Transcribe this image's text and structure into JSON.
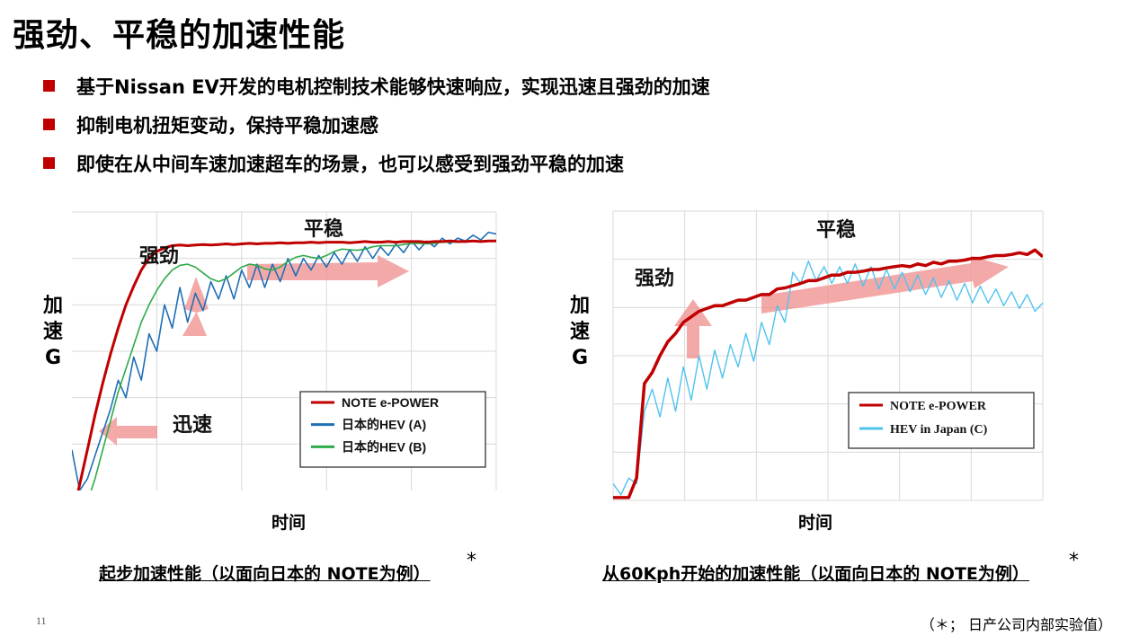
{
  "title": "强劲、平稳的加速性能",
  "bullets": [
    "基于Nissan EV开发的电机控制技术能够快速响应，实现迅速且强劲的加速",
    "抑制电机扭矩变动，保持平稳加速感",
    "即使在从中间车速加速超车的场景，也可以感受到强劲平稳的加速"
  ],
  "colors": {
    "accent": "#c00000",
    "note_line": "#c00000",
    "hev_a": "#1f6fb5",
    "hev_b": "#2eaa4a",
    "hev_c": "#4fc3ef",
    "arrow": "#f08c8c"
  },
  "chart_data": [
    {
      "type": "line",
      "caption": "起步加速性能（以面向日本的 NOTE为例）",
      "caption_star": "*",
      "ylabel": "加速G",
      "xlabel": "时间",
      "annotations": [
        "强劲",
        "平稳",
        "迅速"
      ],
      "grid": true,
      "legend": "lower-right",
      "x": [
        0,
        0.3,
        0.6,
        0.9,
        1.2,
        1.5,
        1.8,
        2.1,
        2.4,
        2.7,
        3.0,
        3.3,
        3.6,
        3.9,
        4.2,
        4.5,
        4.8,
        5.1,
        5.4,
        5.7,
        6.0,
        6.3,
        6.6,
        6.9,
        7.2,
        7.5,
        7.8,
        8.1,
        8.4,
        8.7,
        9.0,
        9.3,
        9.6,
        9.9,
        10.2,
        10.5,
        10.8,
        11.1,
        11.4,
        11.7,
        12.0,
        12.3,
        12.6,
        12.9,
        13.2,
        13.5,
        13.8,
        14.1,
        14.4,
        14.7,
        15.0,
        15.3,
        15.6,
        15.9,
        16.2,
        16.5
      ],
      "series": [
        {
          "name": "NOTE e-POWER",
          "values": [
            -1,
            -0.4,
            0.2,
            0.8,
            1.35,
            1.85,
            2.3,
            2.7,
            3.02,
            3.3,
            3.5,
            3.62,
            3.68,
            3.72,
            3.73,
            3.72,
            3.73,
            3.74,
            3.73,
            3.74,
            3.75,
            3.74,
            3.75,
            3.76,
            3.75,
            3.76,
            3.76,
            3.77,
            3.76,
            3.77,
            3.77,
            3.78,
            3.77,
            3.78,
            3.78,
            3.78,
            3.77,
            3.78,
            3.79,
            3.78,
            3.78,
            3.79,
            3.78,
            3.79,
            3.79,
            3.79,
            3.78,
            3.79,
            3.79,
            3.8,
            3.79,
            3.79,
            3.8,
            3.79,
            3.8,
            3.8
          ]
        },
        {
          "name": "日本的HEV (A)",
          "values": [
            0.2,
            -0.5,
            -0.3,
            0.1,
            0.5,
            0.9,
            1.4,
            1.1,
            1.8,
            1.4,
            2.2,
            1.9,
            2.7,
            2.3,
            3.0,
            2.4,
            2.9,
            2.6,
            3.1,
            2.8,
            3.2,
            2.8,
            3.3,
            3.0,
            3.4,
            3.0,
            3.4,
            3.1,
            3.5,
            3.2,
            3.5,
            3.3,
            3.55,
            3.35,
            3.6,
            3.4,
            3.65,
            3.45,
            3.7,
            3.5,
            3.7,
            3.55,
            3.75,
            3.6,
            3.8,
            3.65,
            3.8,
            3.7,
            3.85,
            3.75,
            3.85,
            3.8,
            3.9,
            3.82,
            3.95,
            3.92
          ]
        },
        {
          "name": "日本的HEV (B)",
          "values": [
            -1.2,
            -1.0,
            -0.7,
            -0.3,
            0.2,
            0.7,
            1.2,
            1.6,
            2.0,
            2.4,
            2.7,
            2.95,
            3.15,
            3.3,
            3.38,
            3.4,
            3.35,
            3.25,
            3.15,
            3.1,
            3.15,
            3.25,
            3.35,
            3.4,
            3.38,
            3.32,
            3.3,
            3.35,
            3.45,
            3.52,
            3.55,
            3.52,
            3.5,
            3.55,
            3.62,
            3.66,
            3.65,
            3.64,
            3.66,
            3.7,
            3.72,
            3.72,
            3.72,
            3.74,
            3.76,
            3.76,
            3.75,
            3.76,
            3.78,
            3.78,
            3.78,
            3.79,
            3.8,
            3.8,
            3.8,
            3.8
          ]
        }
      ]
    },
    {
      "type": "line",
      "caption": "从60Kph开始的加速性能（以面向日本的 NOTE为例）",
      "caption_star": "*",
      "ylabel": "加速G",
      "xlabel": "时间",
      "annotations": [
        "强劲",
        "平稳"
      ],
      "grid": true,
      "legend": "lower-right",
      "x": [
        0,
        0.3,
        0.6,
        0.9,
        1.2,
        1.5,
        1.8,
        2.1,
        2.4,
        2.7,
        3.0,
        3.3,
        3.6,
        3.9,
        4.2,
        4.5,
        4.8,
        5.1,
        5.4,
        5.7,
        6.0,
        6.3,
        6.6,
        6.9,
        7.2,
        7.5,
        7.8,
        8.1,
        8.4,
        8.7,
        9.0,
        9.3,
        9.6,
        9.9,
        10.2,
        10.5,
        10.8,
        11.1,
        11.4,
        11.7,
        12.0,
        12.3,
        12.6,
        12.9,
        13.2,
        13.5,
        13.8,
        14.1,
        14.4,
        14.7,
        15.0,
        15.3,
        15.6,
        15.9,
        16.2,
        16.5
      ],
      "series": [
        {
          "name": "NOTE e-POWER",
          "values": [
            0.05,
            0.05,
            0.05,
            0.4,
            2.1,
            2.3,
            2.6,
            2.85,
            3.0,
            3.2,
            3.3,
            3.4,
            3.45,
            3.5,
            3.5,
            3.55,
            3.6,
            3.6,
            3.65,
            3.7,
            3.7,
            3.8,
            3.82,
            3.86,
            3.9,
            3.95,
            3.95,
            4.0,
            4.05,
            4.05,
            4.1,
            4.1,
            4.12,
            4.15,
            4.15,
            4.18,
            4.2,
            4.22,
            4.2,
            4.25,
            4.22,
            4.28,
            4.25,
            4.3,
            4.3,
            4.32,
            4.35,
            4.35,
            4.38,
            4.4,
            4.4,
            4.42,
            4.45,
            4.42,
            4.5,
            4.38
          ]
        },
        {
          "name": "HEV in Japan (C)",
          "values": [
            0.3,
            0.1,
            0.4,
            0.3,
            1.6,
            2.0,
            1.5,
            2.2,
            1.6,
            2.4,
            1.8,
            2.6,
            2.0,
            2.7,
            2.2,
            2.8,
            2.4,
            3.0,
            2.5,
            3.2,
            2.8,
            3.5,
            3.2,
            4.1,
            3.9,
            4.3,
            3.95,
            4.2,
            3.9,
            4.2,
            3.9,
            4.25,
            3.85,
            4.2,
            3.8,
            4.15,
            3.8,
            4.1,
            3.75,
            4.05,
            3.7,
            4.0,
            3.65,
            3.95,
            3.6,
            3.9,
            3.55,
            3.85,
            3.55,
            3.8,
            3.5,
            3.75,
            3.45,
            3.7,
            3.4,
            3.55
          ]
        }
      ]
    }
  ],
  "page_number": "11",
  "footnote": "（＊； 日产公司内部实验值）"
}
